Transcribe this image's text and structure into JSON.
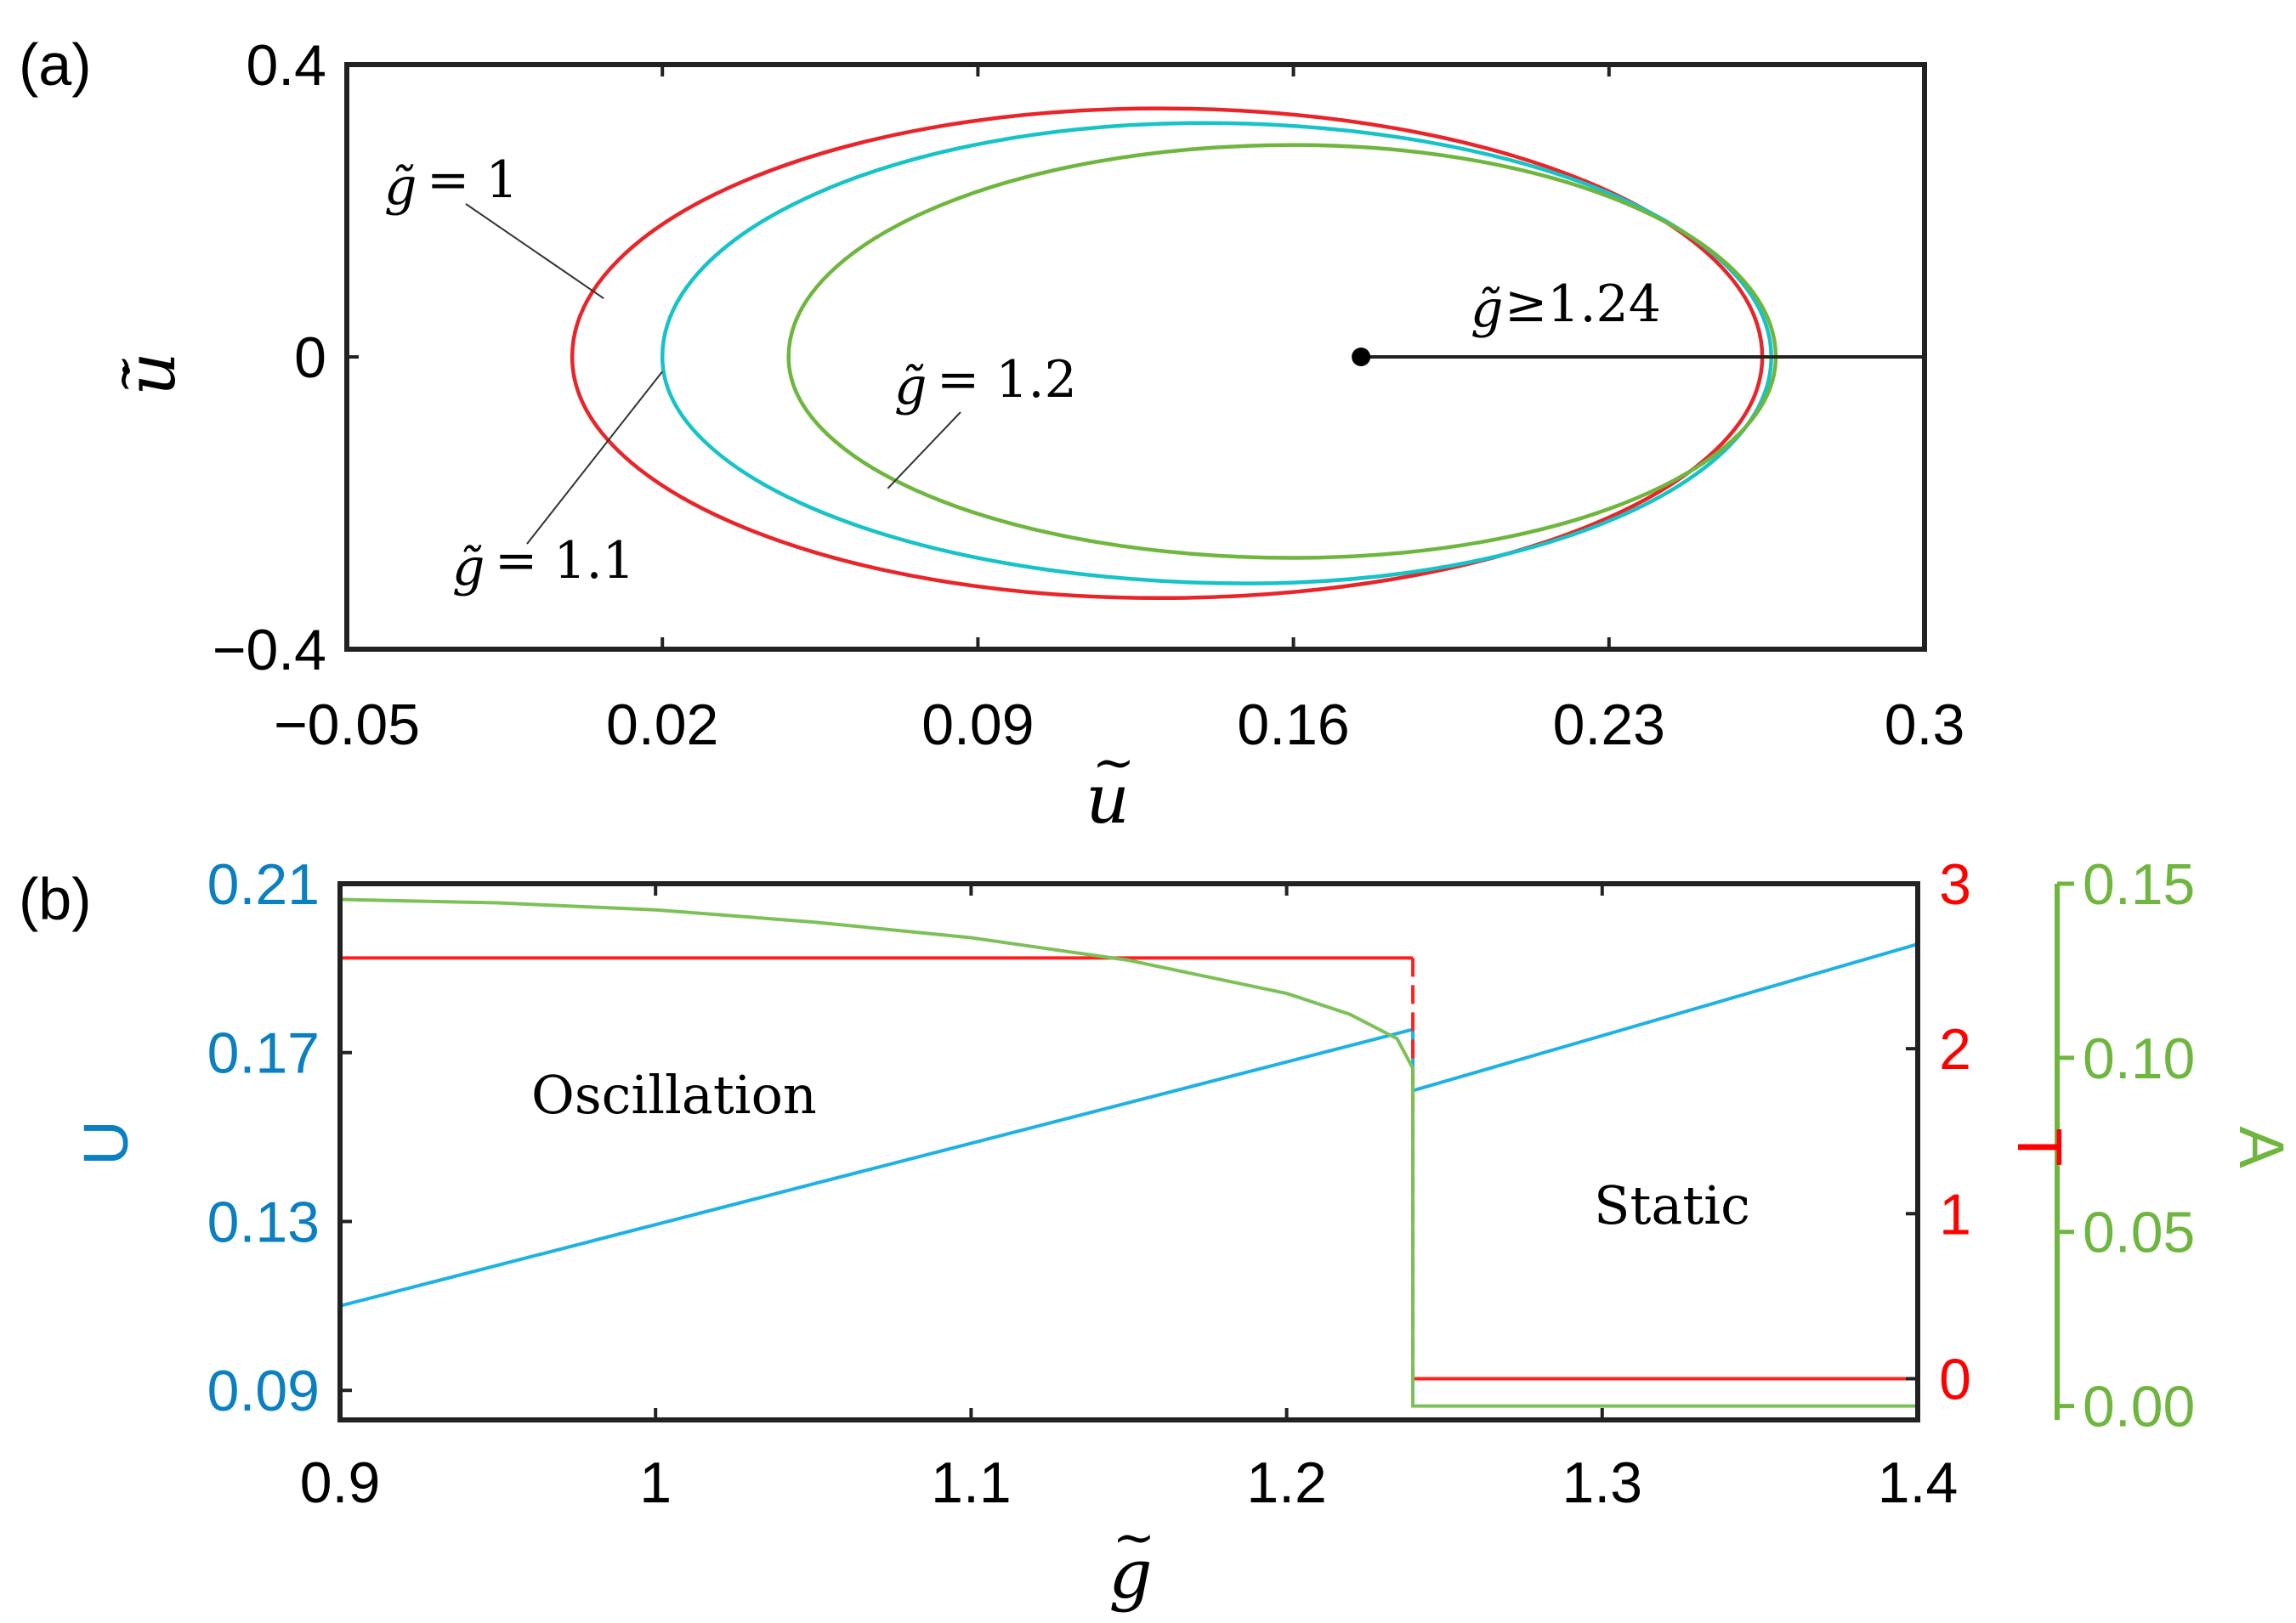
{
  "chart_data": [
    {
      "panel": "(a)",
      "type": "line",
      "xlabel": "ũ",
      "ylabel": "u̇",
      "xlim": [
        -0.05,
        0.3
      ],
      "ylim": [
        -0.4,
        0.4
      ],
      "xticks": [
        -0.05,
        0.02,
        0.09,
        0.16,
        0.23,
        0.3
      ],
      "xtick_labels": [
        "−0.05",
        "0.02",
        "0.09",
        "0.16",
        "0.23",
        "0.3"
      ],
      "yticks": [
        -0.4,
        0,
        0.4
      ],
      "ytick_labels": [
        "−0.4",
        "0",
        "0.4"
      ],
      "series": [
        {
          "name": "g̃ = 1",
          "color": "#e8262a",
          "shape": "closed orbit",
          "u_min": 0.0,
          "u_max": 0.264,
          "v_max": 0.34,
          "v_min": -0.33,
          "u_at_vmax": 0.13,
          "u_at_vmin": 0.13
        },
        {
          "name": "g̃ = 1.1",
          "color": "#17c3c7",
          "shape": "closed orbit",
          "u_min": 0.02,
          "u_max": 0.266,
          "v_max": 0.32,
          "v_min": -0.31,
          "u_at_vmax": 0.14,
          "u_at_vmin": 0.15
        },
        {
          "name": "g̃ = 1.2",
          "color": "#6fb63f",
          "shape": "closed orbit",
          "u_min": 0.048,
          "u_max": 0.267,
          "v_max": 0.29,
          "v_min": -0.275,
          "u_at_vmax": 0.16,
          "u_at_vmin": 0.16
        },
        {
          "name": "g̃≥1.24",
          "color": "#222222",
          "shape": "equilibrium line",
          "x": [
            0.175,
            0.3
          ],
          "y": [
            0,
            0
          ],
          "point": [
            0.175,
            0
          ]
        }
      ],
      "annotations": [
        {
          "label_parts": [
            "g̃",
            "= 1"
          ],
          "target": [
            0.007,
            0.08
          ]
        },
        {
          "label_parts": [
            "g̃",
            "= 1.1"
          ],
          "target": [
            0.02,
            -0.02
          ]
        },
        {
          "label_parts": [
            "g̃",
            "= 1.2"
          ],
          "target": [
            0.07,
            -0.18
          ]
        },
        {
          "label_parts": [
            "g̃",
            "≥1.24"
          ]
        }
      ]
    },
    {
      "panel": "(b)",
      "type": "line",
      "xlabel": "g̃",
      "xlim": [
        0.9,
        1.4
      ],
      "xticks": [
        0.9,
        1,
        1.1,
        1.2,
        1.3,
        1.4
      ],
      "xtick_labels": [
        "0.9",
        "1",
        "1.1",
        "1.2",
        "1.3",
        "1.4"
      ],
      "axes": {
        "U": {
          "label": "U",
          "color": "#0a7fc1",
          "lim": [
            0.083,
            0.21
          ],
          "ticks": [
            0.09,
            0.13,
            0.17,
            0.21
          ],
          "tick_labels": [
            "0.09",
            "0.13",
            "0.17",
            "0.21"
          ]
        },
        "T": {
          "label": "T",
          "color": "#ff0000",
          "lim": [
            -0.25,
            3.0
          ],
          "ticks": [
            0,
            1,
            2,
            3
          ],
          "tick_labels": [
            "0",
            "1",
            "2",
            "3"
          ]
        },
        "A": {
          "label": "A",
          "color": "#6fb63f",
          "lim": [
            -0.004,
            0.15
          ],
          "ticks": [
            0.0,
            0.05,
            0.1,
            0.15
          ],
          "tick_labels": [
            "0.00",
            "0.05",
            "0.10",
            "0.15"
          ]
        }
      },
      "series": [
        {
          "name": "U",
          "axis": "U",
          "color": "#1fb1e6",
          "segments": [
            {
              "x": [
                0.9,
                1.24
              ],
              "y": [
                0.11,
                0.1755
              ]
            },
            {
              "x": [
                1.24,
                1.24
              ],
              "y": [
                0.1755,
                0.161
              ]
            },
            {
              "x": [
                1.24,
                1.4
              ],
              "y": [
                0.161,
                0.1957
              ]
            }
          ]
        },
        {
          "name": "T",
          "axis": "T",
          "color": "#ff2020",
          "x": [
            0.9,
            1.24,
            1.24,
            1.4
          ],
          "y": [
            2.55,
            2.55,
            0,
            0
          ],
          "style": "dashed at jump"
        },
        {
          "name": "A",
          "axis": "A",
          "color": "#7cc157",
          "x": [
            0.9,
            0.95,
            1.0,
            1.05,
            1.1,
            1.15,
            1.2,
            1.22,
            1.235,
            1.24,
            1.24,
            1.4
          ],
          "y": [
            0.1455,
            0.1445,
            0.1425,
            0.139,
            0.1345,
            0.128,
            0.1185,
            0.1125,
            0.1055,
            0.097,
            0.0,
            0.0
          ]
        }
      ],
      "annotations": [
        {
          "text": "Oscillation",
          "at": [
            1.01,
            0.1645
          ]
        },
        {
          "text": "Static",
          "at": [
            1.32,
            0.132
          ]
        }
      ]
    }
  ],
  "panel_labels": [
    "(a)",
    "(b)"
  ]
}
